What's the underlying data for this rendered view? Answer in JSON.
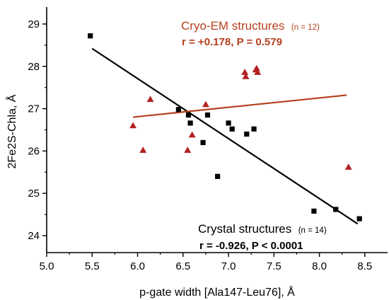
{
  "chart_data": {
    "type": "scatter",
    "xlabel": "p-gate width [Ala147-Leu76], Å",
    "ylabel": "2Fe2S-Chla, Å",
    "xlim": [
      5.0,
      8.75
    ],
    "ylim": [
      23.6,
      29.4
    ],
    "xticks": [
      "5.0",
      "5.5",
      "6.0",
      "6.5",
      "7.0",
      "7.5",
      "8.0",
      "8.5"
    ],
    "yticks": [
      "24",
      "25",
      "26",
      "27",
      "28",
      "29"
    ],
    "grid": false,
    "series": [
      {
        "marker": "square",
        "color": "#000000",
        "points": [
          [
            5.48,
            28.72
          ],
          [
            6.45,
            26.98
          ],
          [
            6.56,
            26.85
          ],
          [
            6.58,
            26.66
          ],
          [
            6.72,
            26.2
          ],
          [
            6.77,
            26.85
          ],
          [
            6.88,
            25.4
          ],
          [
            7.0,
            26.66
          ],
          [
            7.04,
            26.52
          ],
          [
            7.2,
            26.4
          ],
          [
            7.28,
            26.52
          ],
          [
            7.94,
            24.58
          ],
          [
            8.18,
            24.62
          ],
          [
            8.44,
            24.4
          ]
        ],
        "fit": {
          "x": [
            5.5,
            8.42
          ],
          "y": [
            28.42,
            24.28
          ],
          "color": "#000000"
        }
      },
      {
        "marker": "triangle",
        "color": "#b22222",
        "points": [
          [
            5.95,
            26.6
          ],
          [
            6.06,
            26.02
          ],
          [
            6.14,
            27.22
          ],
          [
            6.55,
            26.02
          ],
          [
            6.6,
            26.38
          ],
          [
            6.75,
            27.1
          ],
          [
            7.18,
            27.86
          ],
          [
            7.19,
            27.76
          ],
          [
            7.31,
            27.95
          ],
          [
            7.32,
            27.86
          ],
          [
            8.32,
            25.62
          ],
          [
            7.3,
            27.92
          ]
        ],
        "fit": {
          "x": [
            5.95,
            8.3
          ],
          "y": [
            26.8,
            27.32
          ],
          "color": "#b5401e"
        }
      }
    ],
    "annotations": {
      "cryo_title": "Cryo-EM structures",
      "cryo_n": "(n = 12)",
      "cryo_stat": "r = +0.178, P = 0.579",
      "crystal_title": "Crystal structures",
      "crystal_n": "(n = 14)",
      "crystal_stat": "r = -0.926, P < 0.0001"
    },
    "annotation_colors": {
      "cryo": "#b5401e",
      "crystal": "#000000"
    }
  }
}
